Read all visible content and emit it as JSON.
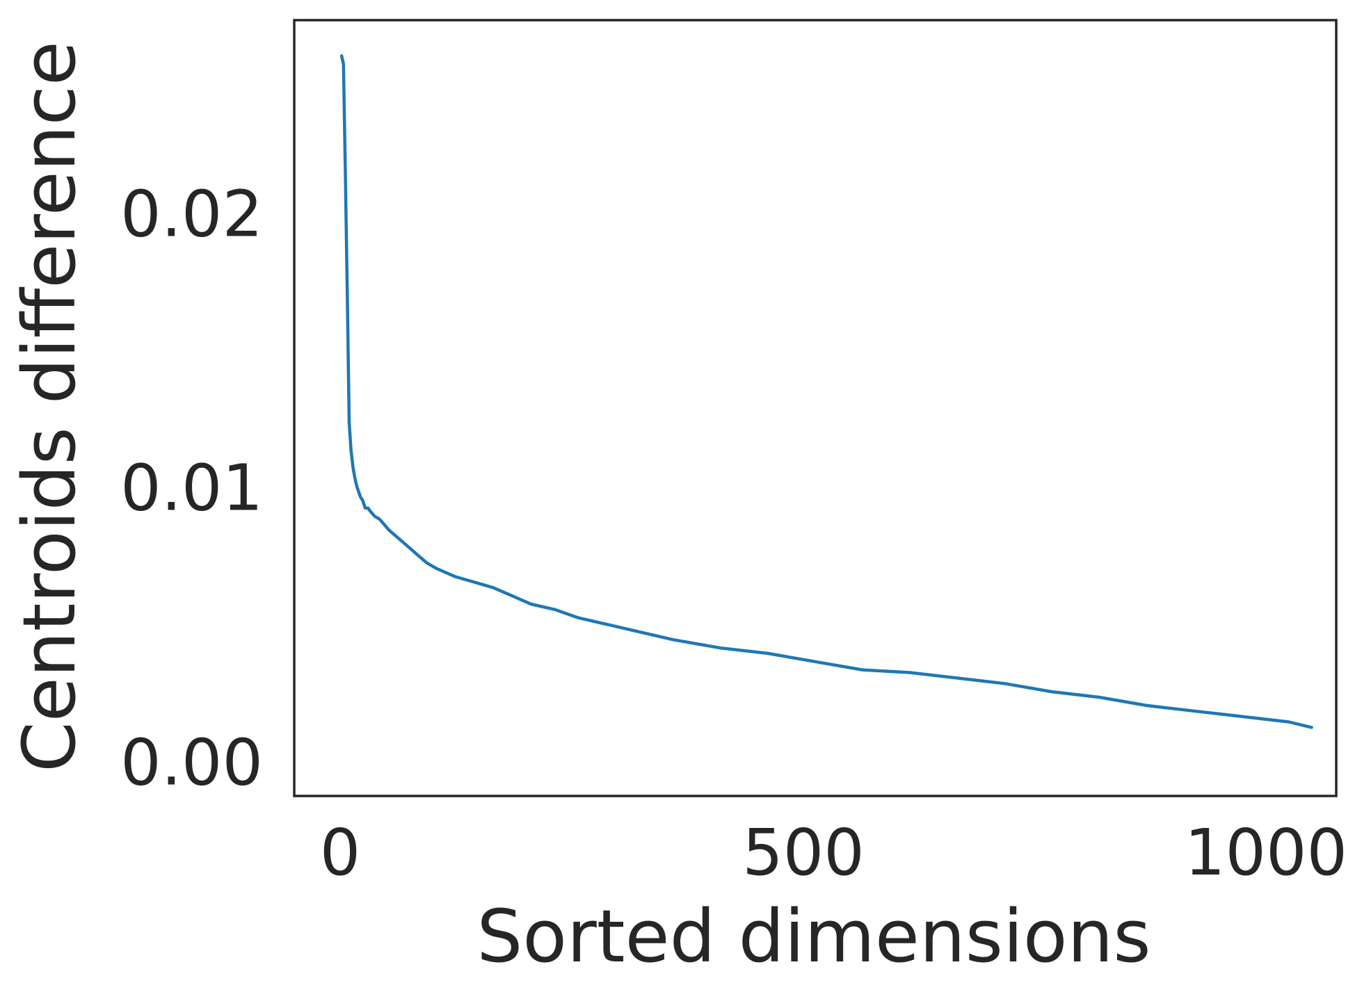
{
  "chart_data": {
    "type": "line",
    "title": "",
    "xlabel": "Sorted dimensions",
    "ylabel": "Centroids difference",
    "xlim": [
      -50,
      1050
    ],
    "ylim": [
      -0.0012,
      0.0271
    ],
    "xticks": [
      0,
      500,
      1000
    ],
    "xtick_labels": [
      "0",
      "500",
      "1000"
    ],
    "yticks": [
      0.0,
      0.01,
      0.02
    ],
    "ytick_labels": [
      "0.00",
      "0.01",
      "0.02"
    ],
    "grid": false,
    "legend": "none",
    "series": [
      {
        "color": "#1f77b4",
        "x": [
          0,
          2,
          4,
          6,
          8,
          10,
          12,
          14,
          16,
          18,
          20,
          22,
          25,
          28,
          30,
          35,
          40,
          50,
          60,
          70,
          80,
          90,
          100,
          120,
          140,
          160,
          180,
          200,
          225,
          250,
          275,
          300,
          350,
          400,
          450,
          500,
          550,
          600,
          650,
          700,
          750,
          800,
          850,
          900,
          950,
          1000,
          1024
        ],
        "values": [
          0.0258,
          0.0255,
          0.0215,
          0.0171,
          0.0124,
          0.0114,
          0.0108,
          0.0104,
          0.0101,
          0.0099,
          0.0097,
          0.0096,
          0.0093,
          0.0093,
          0.0092,
          0.009,
          0.0089,
          0.0085,
          0.0082,
          0.0079,
          0.0076,
          0.0073,
          0.0071,
          0.0068,
          0.0066,
          0.0064,
          0.0061,
          0.0058,
          0.0056,
          0.0053,
          0.0051,
          0.0049,
          0.0045,
          0.0042,
          0.004,
          0.0037,
          0.0034,
          0.0033,
          0.0031,
          0.0029,
          0.0026,
          0.0024,
          0.0021,
          0.0019,
          0.0017,
          0.0015,
          0.0013
        ]
      }
    ]
  }
}
